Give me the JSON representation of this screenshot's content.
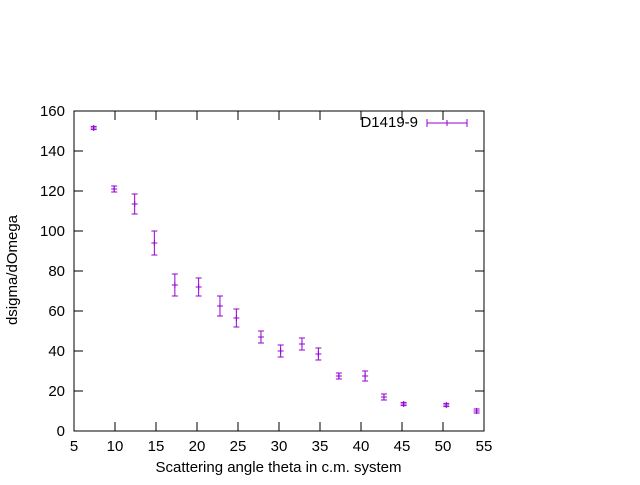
{
  "chart_data": {
    "type": "scatter",
    "title": "",
    "xlabel": "Scattering angle theta in c.m. system",
    "ylabel": "dsigma/dOmega",
    "xlim": [
      5,
      55
    ],
    "ylim": [
      0,
      160
    ],
    "xticks": [
      5,
      10,
      15,
      20,
      25,
      30,
      35,
      40,
      45,
      50,
      55
    ],
    "yticks": [
      0,
      20,
      40,
      60,
      80,
      100,
      120,
      140,
      160
    ],
    "grid": false,
    "legend_position": "top-right",
    "error_bars": true,
    "series": [
      {
        "name": "D1419-9",
        "color": "#9400d3",
        "points": [
          {
            "x": 7.4,
            "y": 151.5,
            "err": 0.8
          },
          {
            "x": 9.9,
            "y": 121.0,
            "err": 1.5
          },
          {
            "x": 12.4,
            "y": 113.5,
            "err": 5.0
          },
          {
            "x": 14.8,
            "y": 94.0,
            "err": 6.0
          },
          {
            "x": 17.3,
            "y": 73.0,
            "err": 5.5
          },
          {
            "x": 20.2,
            "y": 72.0,
            "err": 4.5
          },
          {
            "x": 22.8,
            "y": 62.5,
            "err": 5.0
          },
          {
            "x": 24.8,
            "y": 56.5,
            "err": 4.5
          },
          {
            "x": 27.8,
            "y": 47.0,
            "err": 3.0
          },
          {
            "x": 30.2,
            "y": 40.0,
            "err": 3.0
          },
          {
            "x": 32.8,
            "y": 43.5,
            "err": 3.0
          },
          {
            "x": 34.8,
            "y": 38.5,
            "err": 3.0
          },
          {
            "x": 37.3,
            "y": 27.5,
            "err": 1.5
          },
          {
            "x": 40.5,
            "y": 27.5,
            "err": 2.5
          },
          {
            "x": 42.8,
            "y": 17.0,
            "err": 1.5
          },
          {
            "x": 45.2,
            "y": 13.5,
            "err": 0.8
          },
          {
            "x": 50.4,
            "y": 13.0,
            "err": 0.8
          },
          {
            "x": 54.1,
            "y": 10.0,
            "err": 1.0
          }
        ]
      }
    ]
  }
}
